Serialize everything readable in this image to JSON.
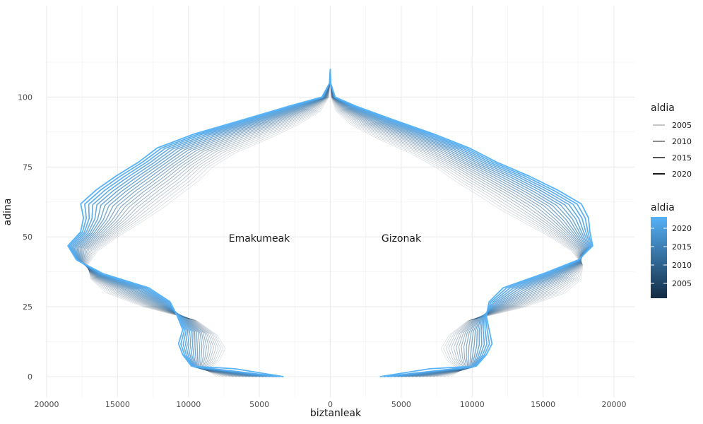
{
  "chart_data": {
    "type": "line",
    "title": "",
    "xlabel": "biztanleak",
    "ylabel": "adina",
    "xlim": [
      -20000,
      20000
    ],
    "ylim": [
      0,
      112
    ],
    "x_ticks": [
      -20000,
      -15000,
      -10000,
      -5000,
      0,
      5000,
      10000,
      15000,
      20000
    ],
    "x_tick_labels": [
      "20000",
      "15000",
      "10000",
      "5000",
      "0",
      "5000",
      "10000",
      "15000",
      "20000"
    ],
    "y_ticks": [
      0,
      25,
      50,
      75,
      100
    ],
    "y_tick_labels": [
      "0",
      "25",
      "50",
      "75",
      "100"
    ],
    "grid": true,
    "annotations": [
      {
        "text": "Emakumeak",
        "x": -5000,
        "y": 50
      },
      {
        "text": "Gizonak",
        "x": 5000,
        "y": 50
      }
    ],
    "legend_placement": "right",
    "legend": {
      "linewidth": {
        "title": "aldia",
        "entries": [
          "2005",
          "2010",
          "2015",
          "2020"
        ]
      },
      "colour": {
        "title": "aldia",
        "entries": [
          "2020",
          "2015",
          "2010",
          "2005"
        ],
        "low_color": "#132B43",
        "high_color": "#56B1F7"
      }
    },
    "series_years": [
      2001,
      2002,
      2003,
      2004,
      2005,
      2006,
      2007,
      2008,
      2009,
      2010,
      2011,
      2012,
      2013,
      2014,
      2015,
      2016,
      2017,
      2018,
      2019,
      2020,
      2021
    ],
    "age_base": [
      0,
      2,
      6,
      10,
      15,
      20,
      25,
      30,
      35,
      40,
      45,
      50,
      55,
      60,
      65,
      70,
      75,
      80,
      85,
      90,
      95,
      100,
      105,
      110
    ],
    "series": [
      {
        "name": "Emakumeak",
        "sex": "female",
        "year": 2001,
        "age": [
          0,
          2,
          6,
          10,
          15,
          20,
          25,
          30,
          35,
          40,
          45,
          50,
          55,
          60,
          65,
          70,
          75,
          80,
          85,
          90,
          95,
          100,
          105,
          110
        ],
        "population": [
          -8000,
          -8600,
          -7800,
          -7400,
          -8000,
          -9400,
          -13200,
          -15800,
          -16900,
          -17100,
          -16400,
          -15000,
          -13400,
          -11900,
          -10600,
          -9300,
          -8300,
          -6700,
          -4400,
          -2300,
          -700,
          -100,
          -20,
          0
        ]
      },
      {
        "name": "Gizonak",
        "sex": "male",
        "year": 2001,
        "age": [
          0,
          2,
          6,
          10,
          15,
          20,
          25,
          30,
          35,
          40,
          45,
          50,
          55,
          60,
          65,
          70,
          75,
          80,
          85,
          90,
          95,
          100,
          105,
          110
        ],
        "population": [
          8500,
          9100,
          8200,
          7800,
          8400,
          9700,
          13800,
          16600,
          17700,
          17800,
          17000,
          15500,
          13700,
          11900,
          10400,
          8800,
          7400,
          5600,
          3400,
          1500,
          400,
          60,
          10,
          0
        ]
      },
      {
        "name": "Emakumeak",
        "sex": "female",
        "year": 2021,
        "age": [
          0,
          1,
          2,
          6,
          10,
          15,
          20,
          25,
          30,
          35,
          40,
          45,
          50,
          55,
          60,
          65,
          70,
          75,
          80,
          85,
          90,
          95,
          100,
          105,
          110
        ],
        "population": [
          -3300,
          -6700,
          -9800,
          -10400,
          -10700,
          -10400,
          -10800,
          -11300,
          -12800,
          -16000,
          -17900,
          -18500,
          -17600,
          -17400,
          -17600,
          -16500,
          -15100,
          -13500,
          -12200,
          -9600,
          -6200,
          -2900,
          -600,
          -50,
          0
        ]
      },
      {
        "name": "Gizonak",
        "sex": "male",
        "year": 2021,
        "age": [
          0,
          1,
          2,
          6,
          10,
          15,
          20,
          25,
          30,
          35,
          40,
          45,
          50,
          55,
          60,
          65,
          70,
          75,
          80,
          85,
          90,
          95,
          100,
          105,
          110
        ],
        "population": [
          3500,
          7000,
          10300,
          11000,
          11400,
          11200,
          11000,
          11200,
          12200,
          15000,
          17500,
          18500,
          18300,
          18200,
          17700,
          16000,
          14000,
          11700,
          9800,
          7300,
          4500,
          1800,
          350,
          20,
          0
        ]
      }
    ]
  }
}
